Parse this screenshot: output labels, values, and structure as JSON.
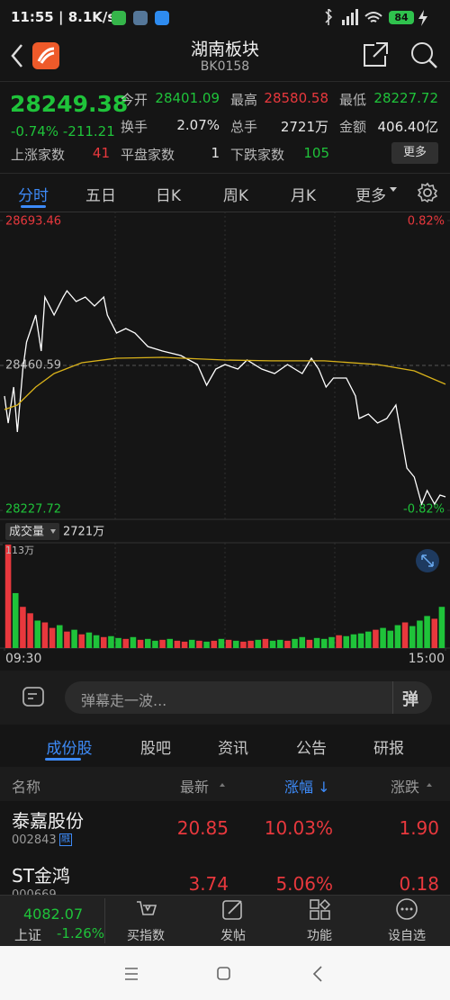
{
  "status_bar": {
    "time": "11:55",
    "speed": "8.1K/s",
    "battery": "84"
  },
  "header": {
    "title": "湖南板块",
    "code": "BK0158"
  },
  "quote": {
    "price": "28249.38",
    "change_pct": "-0.74%",
    "change": "-211.21",
    "fields": [
      {
        "label": "今开",
        "value": "28401.09"
      },
      {
        "label": "最高",
        "value": "28580.58"
      },
      {
        "label": "最低",
        "value": "28227.72"
      },
      {
        "label": "换手",
        "value": "2.07%"
      },
      {
        "label": "总手",
        "value": "2721万"
      },
      {
        "label": "金额",
        "value": "406.40亿"
      },
      {
        "label": "上涨家数",
        "value": "41"
      },
      {
        "label": "平盘家数",
        "value": "1"
      },
      {
        "label": "下跌家数",
        "value": "105"
      }
    ],
    "more": "更多"
  },
  "period_tabs": [
    "分时",
    "五日",
    "日K",
    "周K",
    "月K",
    "更多"
  ],
  "chart_data": [
    {
      "type": "line",
      "xlim": [
        0,
        240
      ],
      "xticks": [
        {
          "value": 0,
          "label": "09:30"
        },
        {
          "value": 240,
          "label": "15:00"
        }
      ],
      "ylim": [
        28227.72,
        28693.46
      ],
      "yticks": [
        28693.46,
        28460.59,
        28227.72
      ],
      "y2lim": [
        -0.82,
        0.82
      ],
      "y2ticks": [
        {
          "value": 0.82,
          "label": "0.82%"
        },
        {
          "value": -0.82,
          "label": "-0.82%"
        }
      ],
      "series": [
        {
          "color": "#ffffff",
          "x": [
            0,
            2,
            5,
            7,
            10,
            12,
            17,
            20,
            22,
            27,
            32,
            34,
            39,
            44,
            49,
            54,
            56,
            61,
            66,
            71,
            78,
            86,
            96,
            105,
            110,
            115,
            120,
            127,
            132,
            140,
            147,
            154,
            162,
            167,
            171,
            175,
            179,
            186,
            191,
            193,
            198,
            203,
            208,
            213,
            216,
            219,
            223,
            227,
            230,
            234,
            237,
            240
          ],
          "values": [
            28411.4,
            28368.0,
            28425.9,
            28353.6,
            28454.8,
            28498.2,
            28541.6,
            28483.8,
            28570.5,
            28541.6,
            28570.5,
            28580.5,
            28563.3,
            28570.5,
            28556.1,
            28570.5,
            28541.6,
            28512.7,
            28519.9,
            28512.7,
            28491.0,
            28483.8,
            28476.5,
            28462.1,
            28428.8,
            28454.8,
            28462.1,
            28454.8,
            28469.3,
            28454.8,
            28447.6,
            28462.1,
            28447.6,
            28472.2,
            28454.8,
            28425.9,
            28440.4,
            28440.4,
            28411.4,
            28375.3,
            28382.5,
            28368.0,
            28375.3,
            28397.0,
            28346.4,
            28295.7,
            28281.3,
            28237.9,
            28259.6,
            28237.9,
            28252.3,
            28249.38
          ]
        },
        {
          "color": "#d9b21a",
          "x": [
            0,
            7,
            17,
            27,
            42,
            61,
            86,
            120,
            145,
            174,
            203,
            223,
            240
          ],
          "values": [
            28389.7,
            28397.0,
            28425.9,
            28447.6,
            28465.0,
            28472.2,
            28473.6,
            28469.3,
            28467.9,
            28467.9,
            28462.1,
            28451.9,
            28430.3
          ]
        }
      ]
    },
    {
      "type": "bar",
      "title": "成交量",
      "total": "2721万",
      "ylim": [
        0,
        113
      ],
      "yticks": [
        {
          "value": 113,
          "label": "113万"
        }
      ],
      "values": [
        113,
        60,
        45,
        38,
        30,
        28,
        22,
        25,
        18,
        20,
        15,
        17,
        14,
        12,
        13,
        11,
        10,
        12,
        9,
        10,
        8,
        9,
        10,
        8,
        7,
        9,
        8,
        7,
        8,
        10,
        9,
        8,
        7,
        8,
        9,
        10,
        8,
        9,
        8,
        10,
        12,
        9,
        11,
        10,
        12,
        14,
        13,
        15,
        16,
        18,
        20,
        22,
        19,
        25,
        28,
        24,
        30,
        35,
        32,
        45
      ],
      "colors": [
        "#e8383d",
        "#1fc33a",
        "#e8383d",
        "#e8383d",
        "#1fc33a",
        "#e8383d",
        "#e8383d",
        "#1fc33a",
        "#e8383d",
        "#1fc33a",
        "#e8383d",
        "#1fc33a",
        "#1fc33a",
        "#e8383d",
        "#1fc33a",
        "#1fc33a",
        "#e8383d",
        "#1fc33a",
        "#e8383d",
        "#1fc33a",
        "#1fc33a",
        "#e8383d",
        "#1fc33a",
        "#e8383d",
        "#e8383d",
        "#1fc33a",
        "#e8383d",
        "#1fc33a",
        "#e8383d",
        "#1fc33a",
        "#e8383d",
        "#1fc33a",
        "#e8383d",
        "#e8383d",
        "#1fc33a",
        "#e8383d",
        "#1fc33a",
        "#1fc33a",
        "#e8383d",
        "#1fc33a",
        "#1fc33a",
        "#e8383d",
        "#1fc33a",
        "#1fc33a",
        "#1fc33a",
        "#e8383d",
        "#1fc33a",
        "#1fc33a",
        "#1fc33a",
        "#1fc33a",
        "#e8383d",
        "#1fc33a",
        "#1fc33a",
        "#1fc33a",
        "#e8383d",
        "#1fc33a",
        "#1fc33a",
        "#1fc33a",
        "#e8383d",
        "#1fc33a"
      ]
    }
  ],
  "danmaku": {
    "placeholder": "弹幕走一波...",
    "button": "弹"
  },
  "section_tabs": [
    "成份股",
    "股吧",
    "资讯",
    "公告",
    "研报"
  ],
  "table": {
    "columns": [
      "名称",
      "最新",
      "涨幅 ↓",
      "涨跌"
    ],
    "rows": [
      {
        "name": "泰嘉股份",
        "code": "002843",
        "badge": "融",
        "last": "20.85",
        "pct": "10.03%",
        "chg": "1.90"
      },
      {
        "name": "ST金鸿",
        "code": "000669",
        "last": "3.74",
        "pct": "5.06%",
        "chg": "0.18"
      }
    ]
  },
  "bottom_bar": {
    "index_value": "4082.07",
    "index_name": "上证",
    "index_pct": "-1.26%",
    "actions": [
      "买指数",
      "发帖",
      "功能",
      "设自选"
    ]
  }
}
